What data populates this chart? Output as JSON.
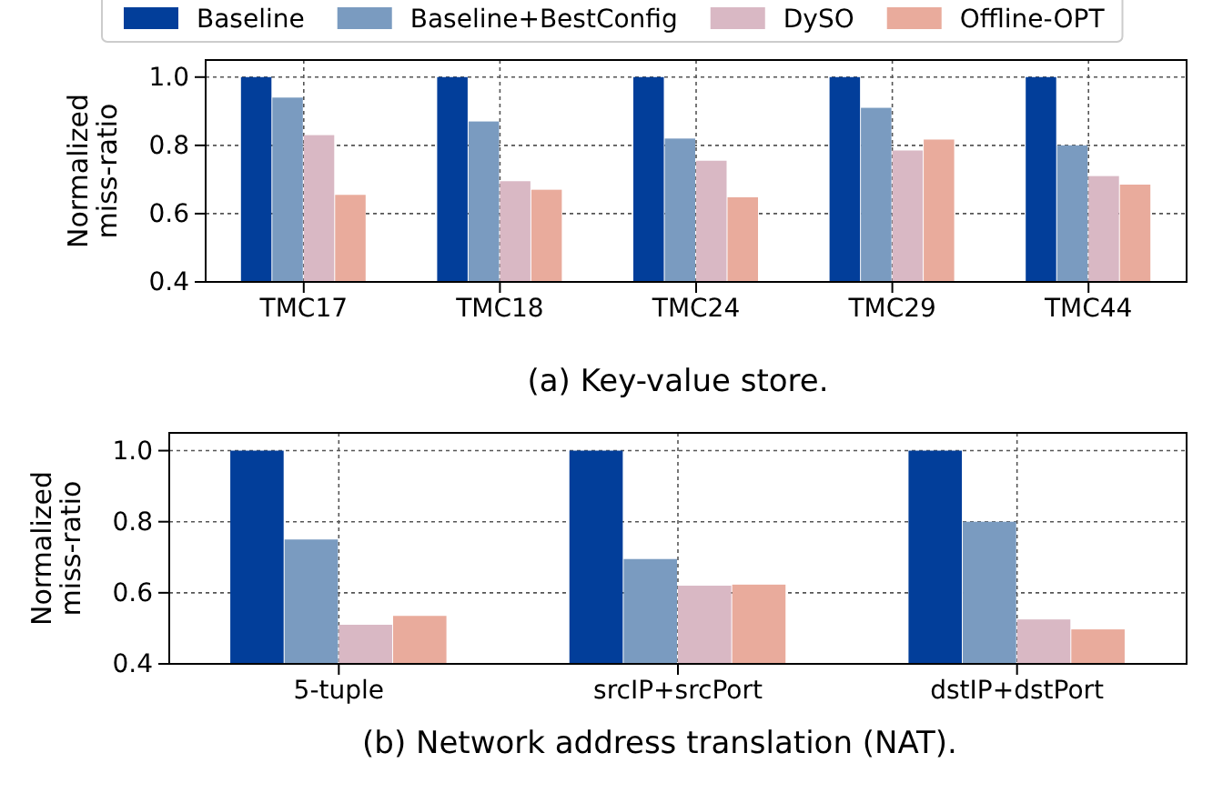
{
  "chart_data": [
    {
      "type": "bar",
      "title": "(a) Key-value store.",
      "ylabel": "Normalized\nmiss-ratio",
      "categories": [
        "TMC17",
        "TMC18",
        "TMC24",
        "TMC29",
        "TMC44"
      ],
      "series": [
        {
          "name": "Baseline",
          "color": "#023e9a",
          "values": [
            1.0,
            1.0,
            1.0,
            1.0,
            1.0
          ]
        },
        {
          "name": "Baseline+BestConfig",
          "color": "#7a9bc0",
          "values": [
            0.94,
            0.87,
            0.82,
            0.91,
            0.8
          ]
        },
        {
          "name": "DySO",
          "color": "#d9b8c4",
          "values": [
            0.83,
            0.695,
            0.755,
            0.785,
            0.71
          ]
        },
        {
          "name": "Offline-OPT",
          "color": "#e9ab9c",
          "values": [
            0.655,
            0.67,
            0.648,
            0.817,
            0.685
          ]
        }
      ],
      "ylim": [
        0.4,
        1.05
      ],
      "yticks": [
        {
          "value": 0.4,
          "label": "0.4"
        },
        {
          "value": 0.6,
          "label": "0.6"
        },
        {
          "value": 0.8,
          "label": "0.8"
        },
        {
          "value": 1.0,
          "label": "1.0"
        }
      ],
      "grid": true,
      "legend": "top"
    },
    {
      "type": "bar",
      "title": "(b) Network address translation (NAT).",
      "ylabel": "Normalized\nmiss-ratio",
      "categories": [
        "5-tuple",
        "srcIP+srcPort",
        "dstIP+dstPort"
      ],
      "series": [
        {
          "color": "#023e9a",
          "values": [
            1.0,
            1.0,
            1.0
          ]
        },
        {
          "color": "#7a9bc0",
          "values": [
            0.75,
            0.695,
            0.8
          ]
        },
        {
          "color": "#d9b8c4",
          "values": [
            0.51,
            0.62,
            0.525
          ]
        },
        {
          "color": "#e9ab9c",
          "values": [
            0.535,
            0.623,
            0.497
          ]
        }
      ],
      "ylim": [
        0.4,
        1.05
      ],
      "yticks": [
        {
          "value": 0.4,
          "label": "0.4"
        },
        {
          "value": 0.6,
          "label": "0.6"
        },
        {
          "value": 0.8,
          "label": "0.8"
        },
        {
          "value": 1.0,
          "label": "1.0"
        }
      ],
      "grid": true
    }
  ]
}
